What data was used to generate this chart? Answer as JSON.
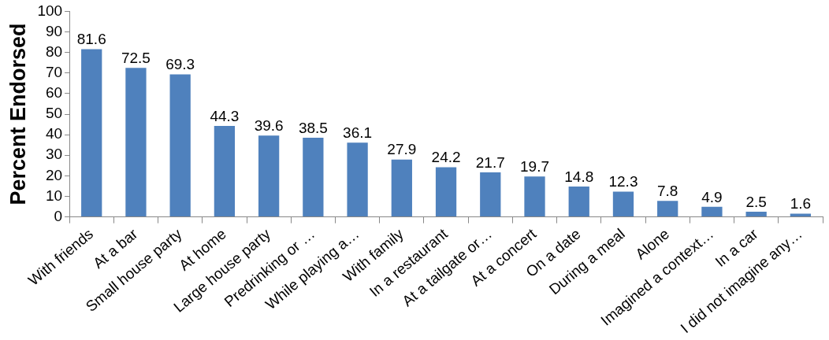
{
  "chart_data": {
    "type": "bar",
    "ylabel": "Percent Endorsed",
    "categories": [
      "With friends",
      "At a bar",
      "Small house party",
      "At home",
      "Large house party",
      "Predrinking or …",
      "While playing a…",
      "With family",
      "In a restaurant",
      "At a tailgate or…",
      "At a concert",
      "On a date",
      "During a meal",
      "Alone",
      "Imagined a context…",
      "In a car",
      "I did not imagine any…"
    ],
    "values": [
      81.6,
      72.5,
      69.3,
      44.3,
      39.6,
      38.5,
      36.1,
      27.9,
      24.2,
      21.7,
      19.7,
      14.8,
      12.3,
      7.8,
      4.9,
      2.5,
      1.6
    ],
    "color": "#4f81bd",
    "ylim": [
      0,
      100
    ],
    "yticks": [
      0,
      10,
      20,
      30,
      40,
      50,
      60,
      70,
      80,
      90,
      100
    ],
    "grid": false,
    "legend": false,
    "data_labels": true
  }
}
